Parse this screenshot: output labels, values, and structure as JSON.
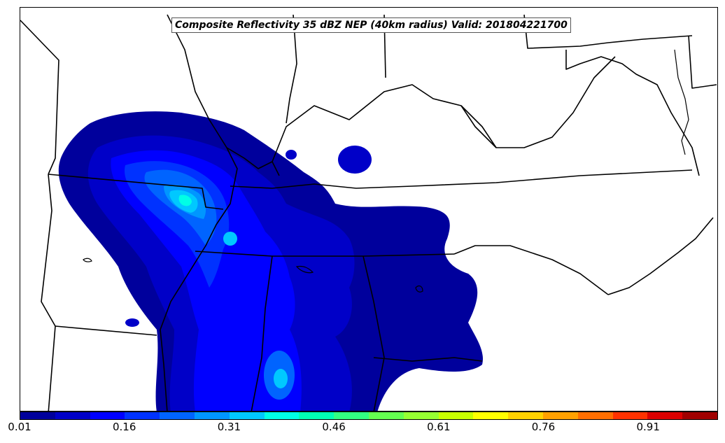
{
  "title": "Composite Reflectivity 35 dBZ NEP (40km radius) Valid: 201804221700",
  "colorbar": {
    "colors": [
      "#00009c",
      "#0000c8",
      "#0000ff",
      "#0032ff",
      "#0064ff",
      "#0096ff",
      "#00c8ff",
      "#00ffe6",
      "#00ffb4",
      "#32ff82",
      "#64ff50",
      "#96ff32",
      "#c8ff00",
      "#ffff00",
      "#ffd200",
      "#ffa000",
      "#ff6e00",
      "#ff3200",
      "#dc0000",
      "#a00000"
    ],
    "ticks": [
      "0.01",
      "0.16",
      "0.31",
      "0.46",
      "0.61",
      "0.76",
      "0.91"
    ],
    "tick_values": [
      0.01,
      0.16,
      0.31,
      0.46,
      0.61,
      0.76,
      0.91
    ],
    "min": 0.01,
    "max": 1.01
  }
}
